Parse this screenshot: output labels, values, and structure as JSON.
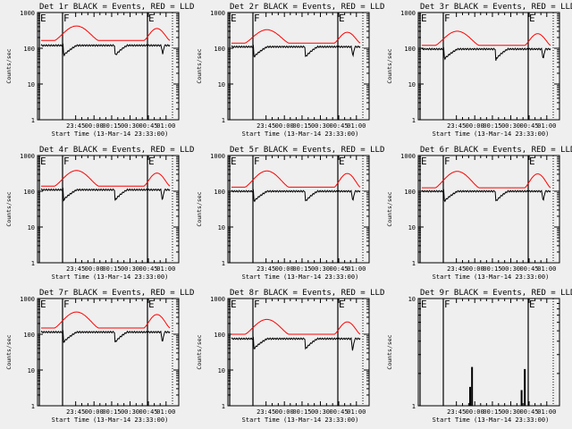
{
  "figure": {
    "background": "#efefef",
    "events_color": "#000000",
    "lld_color": "#ff0000"
  },
  "chart_data": [
    {
      "type": "line",
      "title": "Det 1r BLACK = Events, RED = LLD",
      "ylabel": "Counts/sec",
      "xlabel": "Start Time (13-Mar-14 23:33:00)",
      "xticks": [
        "23:45",
        "00:00",
        "00:15",
        "00:30",
        "00:45",
        "01:00"
      ],
      "yticks": [
        "1",
        "10",
        "100",
        "1000"
      ],
      "ylim": [
        1,
        1000
      ],
      "yscale": "log",
      "flags": [
        "E",
        "F",
        "E"
      ],
      "series": [
        {
          "name": "LLD",
          "base": 165,
          "peak": 420
        },
        {
          "name": "Events",
          "base": 120,
          "peak": 125,
          "dips": [
            {
              "t": 35,
              "v": 70
            },
            {
              "t": 115,
              "v": 70
            },
            {
              "t": 188,
              "v": 85
            }
          ]
        }
      ]
    },
    {
      "type": "line",
      "title": "Det 2r BLACK = Events, RED = LLD",
      "ylabel": "Counts/sec",
      "xlabel": "Start Time (13-Mar-14 23:33:00)",
      "xticks": [
        "23:45",
        "00:00",
        "00:15",
        "00:30",
        "00:45",
        "01:00"
      ],
      "yticks": [
        "1",
        "10",
        "100",
        "1000"
      ],
      "ylim": [
        1,
        1000
      ],
      "yscale": "log",
      "flags": [
        "E",
        "F",
        "E"
      ],
      "series": [
        {
          "name": "LLD",
          "base": 140,
          "peak": 330
        },
        {
          "name": "Events",
          "base": 110,
          "peak": 115,
          "dips": [
            {
              "t": 35,
              "v": 60
            },
            {
              "t": 115,
              "v": 60
            },
            {
              "t": 188,
              "v": 70
            }
          ]
        }
      ]
    },
    {
      "type": "line",
      "title": "Det 3r BLACK = Events, RED = LLD",
      "ylabel": "Counts/sec",
      "xlabel": "Start Time (13-Mar-14 23:33:00)",
      "xticks": [
        "23:45",
        "00:00",
        "00:15",
        "00:30",
        "00:45",
        "01:00"
      ],
      "yticks": [
        "1",
        "10",
        "100",
        "1000"
      ],
      "ylim": [
        1,
        1000
      ],
      "yscale": "log",
      "flags": [
        "E",
        "F",
        "E"
      ],
      "series": [
        {
          "name": "LLD",
          "base": 120,
          "peak": 300
        },
        {
          "name": "Events",
          "base": 95,
          "peak": 100,
          "dips": [
            {
              "t": 35,
              "v": 55
            },
            {
              "t": 115,
              "v": 45
            },
            {
              "t": 188,
              "v": 55
            }
          ]
        }
      ]
    },
    {
      "type": "line",
      "title": "Det 4r BLACK = Events, RED = LLD",
      "ylabel": "Counts/sec",
      "xlabel": "Start Time (13-Mar-14 23:33:00)",
      "xticks": [
        "23:45",
        "00:00",
        "00:15",
        "00:30",
        "00:45",
        "01:00"
      ],
      "yticks": [
        "1",
        "10",
        "100",
        "1000"
      ],
      "ylim": [
        1,
        1000
      ],
      "yscale": "log",
      "flags": [
        "E",
        "F",
        "E"
      ],
      "series": [
        {
          "name": "LLD",
          "base": 140,
          "peak": 380
        },
        {
          "name": "Events",
          "base": 110,
          "peak": 115,
          "dips": [
            {
              "t": 35,
              "v": 55
            },
            {
              "t": 115,
              "v": 55
            },
            {
              "t": 188,
              "v": 60
            }
          ]
        }
      ]
    },
    {
      "type": "line",
      "title": "Det 5r BLACK = Events, RED = LLD",
      "ylabel": "Counts/sec",
      "xlabel": "Start Time (13-Mar-14 23:33:00)",
      "xticks": [
        "23:45",
        "00:00",
        "00:15",
        "00:30",
        "00:45",
        "01:00"
      ],
      "yticks": [
        "1",
        "10",
        "100",
        "1000"
      ],
      "ylim": [
        1,
        1000
      ],
      "yscale": "log",
      "flags": [
        "E",
        "F",
        "E"
      ],
      "series": [
        {
          "name": "LLD",
          "base": 130,
          "peak": 370
        },
        {
          "name": "Events",
          "base": 100,
          "peak": 105,
          "dips": [
            {
              "t": 35,
              "v": 55
            },
            {
              "t": 115,
              "v": 55
            },
            {
              "t": 188,
              "v": 60
            }
          ]
        }
      ]
    },
    {
      "type": "line",
      "title": "Det 6r BLACK = Events, RED = LLD",
      "ylabel": "Counts/sec",
      "xlabel": "Start Time (13-Mar-14 23:33:00)",
      "xticks": [
        "23:45",
        "00:00",
        "00:15",
        "00:30",
        "00:45",
        "01:00"
      ],
      "yticks": [
        "1",
        "10",
        "100",
        "1000"
      ],
      "ylim": [
        1,
        1000
      ],
      "yscale": "log",
      "flags": [
        "E",
        "F",
        "E"
      ],
      "series": [
        {
          "name": "LLD",
          "base": 125,
          "peak": 360
        },
        {
          "name": "Events",
          "base": 100,
          "peak": 105,
          "dips": [
            {
              "t": 35,
              "v": 55
            },
            {
              "t": 115,
              "v": 55
            },
            {
              "t": 188,
              "v": 60
            }
          ]
        }
      ]
    },
    {
      "type": "line",
      "title": "Det 7r BLACK = Events, RED = LLD",
      "ylabel": "Counts/sec",
      "xlabel": "Start Time (13-Mar-14 23:33:00)",
      "xticks": [
        "23:45",
        "00:00",
        "00:15",
        "00:30",
        "00:45",
        "01:00"
      ],
      "yticks": [
        "1",
        "10",
        "100",
        "1000"
      ],
      "ylim": [
        1,
        1000
      ],
      "yscale": "log",
      "flags": [
        "E",
        "F",
        "E"
      ],
      "series": [
        {
          "name": "LLD",
          "base": 150,
          "peak": 420
        },
        {
          "name": "Events",
          "base": 115,
          "peak": 120,
          "dips": [
            {
              "t": 35,
              "v": 60
            },
            {
              "t": 115,
              "v": 60
            },
            {
              "t": 188,
              "v": 65
            }
          ]
        }
      ]
    },
    {
      "type": "line",
      "title": "Det 8r BLACK = Events, RED = LLD",
      "ylabel": "Counts/sec",
      "xlabel": "Start Time (13-Mar-14 23:33:00)",
      "xticks": [
        "23:45",
        "00:00",
        "00:15",
        "00:30",
        "00:45",
        "01:00"
      ],
      "yticks": [
        "1",
        "10",
        "100",
        "1000"
      ],
      "ylim": [
        1,
        1000
      ],
      "yscale": "log",
      "flags": [
        "E",
        "F",
        "E"
      ],
      "series": [
        {
          "name": "LLD",
          "base": 100,
          "peak": 260
        },
        {
          "name": "Events",
          "base": 75,
          "peak": 80,
          "dips": [
            {
              "t": 35,
              "v": 40
            },
            {
              "t": 115,
              "v": 40
            },
            {
              "t": 188,
              "v": 35
            }
          ]
        }
      ]
    },
    {
      "type": "line",
      "title": "Det 9r BLACK = Events, RED = LLD",
      "ylabel": "Counts/sec",
      "xlabel": "Start Time (13-Mar-14 23:33:00)",
      "xticks": [
        "23:45",
        "00:00",
        "00:15",
        "00:30",
        "00:45",
        "01:00"
      ],
      "yticks": [
        "1",
        "10"
      ],
      "ylim": [
        1,
        10
      ],
      "yscale": "log",
      "flags": [
        "E",
        "F",
        "E"
      ],
      "series": [
        {
          "name": "LLD",
          "base": 0,
          "peak": 0
        },
        {
          "name": "Events",
          "spikes": [
            {
              "t": 75,
              "v": 1.5
            },
            {
              "t": 78,
              "v": 2.3
            },
            {
              "t": 155,
              "v": 1.4
            },
            {
              "t": 160,
              "v": 2.2
            }
          ]
        }
      ]
    }
  ]
}
